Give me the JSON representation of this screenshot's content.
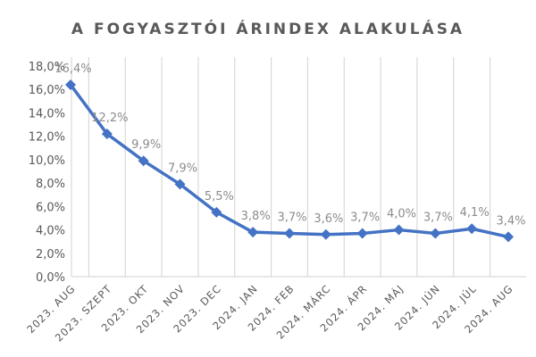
{
  "chart_data": {
    "type": "line",
    "title": "A FOGYASZTÓI ÁRINDEX ALAKULÁSA",
    "xlabel": "",
    "ylabel": "",
    "categories": [
      "2023. AUG",
      "2023. SZEPT",
      "2023. OKT",
      "2023. NOV",
      "2023. DEC",
      "2024. JAN",
      "2024. FEB",
      "2024. MÁRC",
      "2024. ÁPR",
      "2024. MÁJ",
      "2024. JÚN",
      "2024. JÚL",
      "2024. AUG"
    ],
    "series": [
      {
        "name": "Fogyasztói árindex",
        "values": [
          16.4,
          12.2,
          9.9,
          7.9,
          5.5,
          3.8,
          3.7,
          3.6,
          3.7,
          4.0,
          3.7,
          4.1,
          3.4
        ],
        "labels": [
          "16,4%",
          "12,2%",
          "9,9%",
          "7,9%",
          "5,5%",
          "3,8%",
          "3,7%",
          "3,6%",
          "3,7%",
          "4,0%",
          "3,7%",
          "4,1%",
          "3,4%"
        ],
        "color": "#4472c4",
        "marker": "diamond"
      }
    ],
    "yticks": [
      "0,0%",
      "2,0%",
      "4,0%",
      "6,0%",
      "8,0%",
      "10,0%",
      "12,0%",
      "14,0%",
      "16,0%",
      "18,0%"
    ],
    "ylim": [
      0,
      18
    ],
    "grid": "vertical",
    "legend": "none"
  },
  "colors": {
    "line": "#4472c4",
    "grid": "#d9d9d9",
    "text": "#595959",
    "label": "#8c8c8c"
  }
}
